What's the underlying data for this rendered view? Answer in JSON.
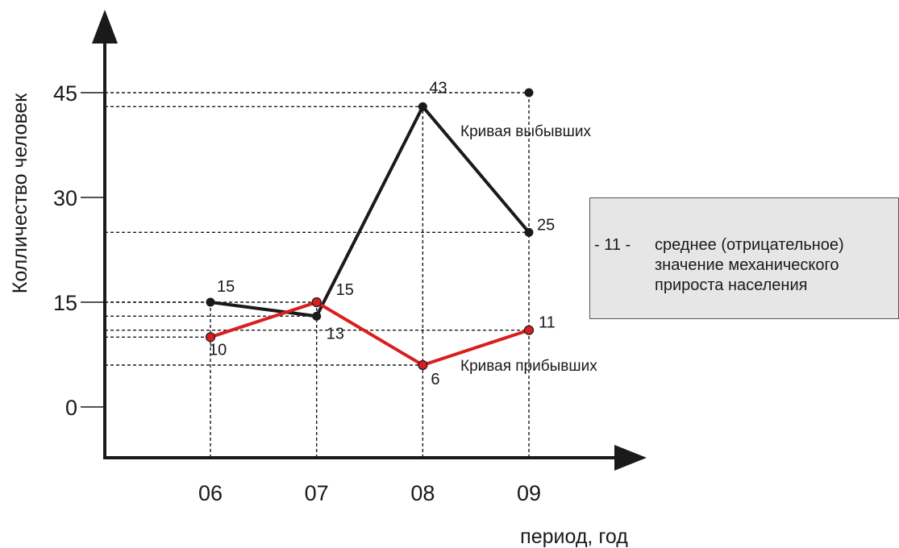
{
  "chart_data": {
    "type": "line",
    "title": "",
    "xlabel": "период, год",
    "ylabel": "Колличество человек",
    "categories": [
      "06",
      "07",
      "08",
      "09"
    ],
    "y_ticks": [
      0,
      15,
      30,
      45
    ],
    "ylim": [
      -7,
      51
    ],
    "grid": false,
    "series": [
      {
        "name": "Кривая выбывших",
        "color": "#1a1a1a",
        "values": [
          15,
          13,
          43,
          25
        ]
      },
      {
        "name": "Кривая прибывших",
        "color": "#d91e1e",
        "values": [
          10,
          15,
          6,
          11
        ]
      }
    ],
    "extra_point": {
      "category": "09",
      "value": 45
    },
    "legend": {
      "marker": "- 11 -",
      "lines": [
        "среднее (отрицательное)",
        "значение  механического",
        "прироста населения"
      ]
    }
  }
}
